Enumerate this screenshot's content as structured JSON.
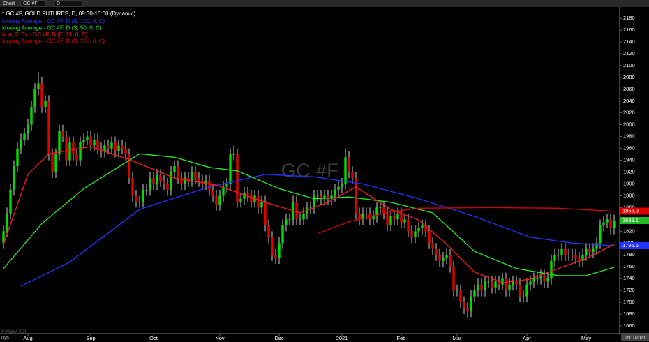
{
  "toolbar": {
    "label": "Chart",
    "symbol": "GC #F",
    "interval": "D"
  },
  "footer": {
    "source": "© eSignal, 2021",
    "mode": "Dyn",
    "date": "05/11/2021"
  },
  "chart_data": {
    "type": "candlestick",
    "title": "* GC #F, GOLD FUTURES, D, 09:30-16:00 (Dynamic)",
    "watermark": "GC #F",
    "up_color": "#00dd00",
    "down_color": "#e00000",
    "open": [
      1800,
      1820,
      1850,
      1890,
      1930,
      1960,
      1975,
      1985,
      2000,
      2030,
      2060,
      2070,
      2030,
      2040,
      1950,
      1920,
      1950,
      1990,
      1980,
      1940,
      1970,
      1950,
      1940,
      1970,
      1975,
      1980,
      1965,
      1975,
      1960,
      1955,
      1965,
      1960,
      1970,
      1955,
      1965,
      1960,
      1950,
      1910,
      1880,
      1870,
      1870,
      1890,
      1890,
      1910,
      1900,
      1915,
      1905,
      1900,
      1890,
      1920,
      1930,
      1910,
      1900,
      1910,
      1905,
      1920,
      1910,
      1905,
      1900,
      1905,
      1890,
      1880,
      1865,
      1880,
      1895,
      1900,
      1950,
      1950,
      1870,
      1875,
      1885,
      1880,
      1870,
      1880,
      1860,
      1870,
      1830,
      1810,
      1780,
      1775,
      1800,
      1830,
      1840,
      1840,
      1870,
      1840,
      1840,
      1850,
      1860,
      1860,
      1880,
      1880,
      1875,
      1880,
      1875,
      1880,
      1890,
      1895,
      1900,
      1945,
      1920,
      1910,
      1850,
      1840,
      1850,
      1850,
      1840,
      1845,
      1860,
      1860,
      1850,
      1830,
      1845,
      1840,
      1850,
      1835,
      1840,
      1820,
      1810,
      1820,
      1825,
      1830,
      1820,
      1800,
      1790,
      1780,
      1770,
      1775,
      1780,
      1760,
      1720,
      1720,
      1700,
      1690,
      1685,
      1710,
      1720,
      1730,
      1720,
      1735,
      1735,
      1725,
      1735,
      1730,
      1740,
      1720,
      1730,
      1735,
      1730,
      1710,
      1710,
      1730,
      1735,
      1740,
      1740,
      1745,
      1735,
      1740,
      1770,
      1780,
      1780,
      1790,
      1780,
      1780,
      1780,
      1775,
      1770,
      1780,
      1790,
      1785,
      1790,
      1800,
      1830,
      1835,
      1840,
      1825
    ],
    "high": [
      1830,
      1860,
      1900,
      1940,
      1970,
      1985,
      1995,
      2010,
      2040,
      2070,
      2089,
      2080,
      2050,
      2050,
      1960,
      1960,
      2000,
      2000,
      1990,
      1980,
      1980,
      1960,
      1980,
      1985,
      1990,
      1990,
      1985,
      1985,
      1970,
      1975,
      1975,
      1980,
      1980,
      1975,
      1975,
      1970,
      1960,
      1920,
      1890,
      1880,
      1900,
      1900,
      1920,
      1920,
      1925,
      1925,
      1915,
      1910,
      1930,
      1940,
      1940,
      1920,
      1920,
      1920,
      1930,
      1930,
      1920,
      1915,
      1915,
      1915,
      1900,
      1890,
      1890,
      1905,
      1910,
      1960,
      1965,
      1960,
      1885,
      1895,
      1895,
      1890,
      1890,
      1890,
      1880,
      1880,
      1840,
      1820,
      1790,
      1810,
      1840,
      1850,
      1850,
      1880,
      1880,
      1850,
      1860,
      1870,
      1870,
      1890,
      1890,
      1890,
      1890,
      1890,
      1890,
      1900,
      1905,
      1910,
      1960,
      1955,
      1930,
      1920,
      1860,
      1860,
      1860,
      1860,
      1855,
      1870,
      1870,
      1870,
      1860,
      1855,
      1855,
      1860,
      1860,
      1850,
      1850,
      1830,
      1830,
      1835,
      1840,
      1840,
      1830,
      1810,
      1800,
      1790,
      1785,
      1790,
      1790,
      1770,
      1730,
      1730,
      1710,
      1700,
      1720,
      1730,
      1740,
      1740,
      1745,
      1745,
      1745,
      1745,
      1745,
      1750,
      1750,
      1740,
      1745,
      1745,
      1740,
      1720,
      1740,
      1745,
      1750,
      1750,
      1755,
      1755,
      1750,
      1780,
      1790,
      1790,
      1800,
      1800,
      1790,
      1790,
      1790,
      1785,
      1790,
      1800,
      1800,
      1800,
      1810,
      1840,
      1845,
      1850,
      1850,
      1848
    ],
    "low": [
      1790,
      1810,
      1840,
      1880,
      1920,
      1950,
      1965,
      1975,
      1990,
      2020,
      2050,
      2020,
      2020,
      1940,
      1910,
      1910,
      1940,
      1970,
      1930,
      1930,
      1940,
      1930,
      1930,
      1960,
      1965,
      1955,
      1955,
      1950,
      1945,
      1945,
      1950,
      1950,
      1945,
      1945,
      1950,
      1940,
      1900,
      1870,
      1860,
      1860,
      1860,
      1880,
      1880,
      1890,
      1890,
      1895,
      1890,
      1880,
      1880,
      1910,
      1900,
      1890,
      1890,
      1895,
      1895,
      1900,
      1895,
      1890,
      1890,
      1880,
      1870,
      1855,
      1855,
      1870,
      1885,
      1890,
      1940,
      1860,
      1860,
      1865,
      1870,
      1860,
      1860,
      1850,
      1850,
      1820,
      1800,
      1770,
      1765,
      1765,
      1790,
      1820,
      1830,
      1830,
      1830,
      1830,
      1830,
      1840,
      1850,
      1850,
      1870,
      1865,
      1865,
      1865,
      1865,
      1870,
      1880,
      1885,
      1890,
      1910,
      1900,
      1840,
      1830,
      1830,
      1840,
      1830,
      1830,
      1835,
      1850,
      1840,
      1820,
      1820,
      1830,
      1830,
      1825,
      1825,
      1810,
      1800,
      1800,
      1810,
      1815,
      1810,
      1790,
      1780,
      1770,
      1760,
      1760,
      1765,
      1750,
      1710,
      1710,
      1690,
      1680,
      1675,
      1675,
      1700,
      1710,
      1710,
      1710,
      1725,
      1715,
      1715,
      1720,
      1720,
      1710,
      1710,
      1720,
      1720,
      1700,
      1700,
      1700,
      1720,
      1725,
      1730,
      1730,
      1725,
      1725,
      1730,
      1760,
      1770,
      1770,
      1770,
      1770,
      1770,
      1765,
      1760,
      1760,
      1770,
      1775,
      1775,
      1780,
      1790,
      1820,
      1825,
      1815,
      1815
    ],
    "close": [
      1820,
      1850,
      1890,
      1930,
      1960,
      1975,
      1985,
      2000,
      2030,
      2060,
      2070,
      2030,
      2040,
      1950,
      1920,
      1950,
      1990,
      1980,
      1940,
      1970,
      1950,
      1940,
      1970,
      1975,
      1980,
      1965,
      1975,
      1960,
      1955,
      1965,
      1960,
      1970,
      1955,
      1965,
      1960,
      1950,
      1910,
      1880,
      1870,
      1870,
      1890,
      1890,
      1910,
      1900,
      1915,
      1905,
      1900,
      1890,
      1920,
      1930,
      1910,
      1900,
      1910,
      1905,
      1920,
      1910,
      1905,
      1900,
      1905,
      1890,
      1880,
      1865,
      1880,
      1895,
      1900,
      1950,
      1950,
      1870,
      1875,
      1885,
      1880,
      1870,
      1880,
      1860,
      1870,
      1830,
      1810,
      1780,
      1775,
      1800,
      1830,
      1840,
      1840,
      1870,
      1840,
      1840,
      1850,
      1860,
      1860,
      1880,
      1880,
      1875,
      1880,
      1875,
      1880,
      1890,
      1895,
      1900,
      1945,
      1920,
      1910,
      1850,
      1840,
      1850,
      1850,
      1840,
      1845,
      1860,
      1860,
      1850,
      1830,
      1845,
      1840,
      1850,
      1835,
      1840,
      1820,
      1810,
      1820,
      1825,
      1830,
      1820,
      1800,
      1790,
      1780,
      1770,
      1775,
      1780,
      1760,
      1720,
      1720,
      1700,
      1690,
      1685,
      1710,
      1720,
      1730,
      1720,
      1735,
      1735,
      1725,
      1735,
      1730,
      1740,
      1720,
      1730,
      1735,
      1730,
      1710,
      1710,
      1730,
      1735,
      1740,
      1740,
      1745,
      1735,
      1740,
      1770,
      1780,
      1780,
      1790,
      1780,
      1780,
      1780,
      1775,
      1770,
      1780,
      1790,
      1785,
      1790,
      1800,
      1830,
      1835,
      1840,
      1825,
      1838.1
    ],
    "series": [
      {
        "name": "Moving Average - GC #F, D (S, 100, 0, C)",
        "color": "#2233ff",
        "x": [
          5,
          19,
          39,
          59,
          75,
          89,
          103,
          119,
          135,
          151,
          163,
          175
        ],
        "values": [
          1727,
          1768,
          1857,
          1895,
          1916,
          1912,
          1900,
          1875,
          1845,
          1810,
          1800,
          1795.6
        ]
      },
      {
        "name": "Moving Average - GC #F, D (S, 50, 0, C)",
        "color": "#22ee22",
        "x": [
          0,
          11,
          23,
          39,
          49,
          59,
          67,
          79,
          89,
          99,
          111,
          123,
          135,
          147,
          159,
          167,
          175
        ],
        "values": [
          1757,
          1833,
          1892,
          1951,
          1945,
          1928,
          1922,
          1892,
          1875,
          1878,
          1869,
          1851,
          1786,
          1757,
          1745,
          1745,
          1759
        ]
      },
      {
        "name": "M.A. 21Ex - GC #F, D (E, 21, 0, C)",
        "color": "#ff1a1a",
        "x": [
          0,
          7,
          13,
          25,
          37,
          49,
          61,
          75,
          85,
          93,
          101,
          111,
          119,
          127,
          135,
          143,
          151,
          159,
          167,
          175
        ],
        "values": [
          1798,
          1916,
          1951,
          1963,
          1939,
          1910,
          1898,
          1869,
          1851,
          1869,
          1895,
          1857,
          1839,
          1798,
          1751,
          1733,
          1739,
          1757,
          1774,
          1798
        ]
      },
      {
        "name": "Moving Average - GC #F, D (S, 200, 0, C)",
        "color": "#dd0000",
        "x": [
          90,
          99,
          111,
          119,
          139,
          159,
          175
        ],
        "values": [
          1816,
          1836,
          1853,
          1859,
          1860,
          1859,
          1853.9
        ]
      }
    ],
    "ylim": [
      1647,
      2199
    ],
    "yticks": [
      1660,
      1680,
      1700,
      1720,
      1740,
      1760,
      1780,
      1800,
      1820,
      1840,
      1860,
      1880,
      1900,
      1920,
      1940,
      1960,
      1980,
      2000,
      2020,
      2040,
      2060,
      2080,
      2100,
      2120,
      2140,
      2160,
      2180
    ],
    "xlim": [
      -1,
      176.6
    ],
    "xticks": [
      {
        "value": 7,
        "label": "Aug"
      },
      {
        "value": 25,
        "label": "Sep"
      },
      {
        "value": 43,
        "label": "Oct"
      },
      {
        "value": 62,
        "label": "Nov"
      },
      {
        "value": 79,
        "label": "Dec"
      },
      {
        "value": 97,
        "label": "2021"
      },
      {
        "value": 114,
        "label": "Feb"
      },
      {
        "value": 130,
        "label": "Mar"
      },
      {
        "value": 150,
        "label": "Apr"
      },
      {
        "value": 167,
        "label": "May"
      }
    ]
  }
}
